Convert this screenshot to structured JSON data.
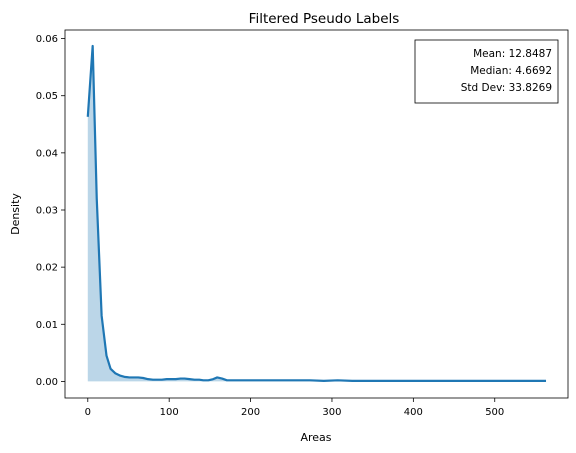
{
  "chart_data": {
    "type": "area",
    "title": "Filtered Pseudo Labels",
    "xlabel": "Areas",
    "ylabel": "Density",
    "xlim": [
      -28,
      590
    ],
    "ylim": [
      -0.0029,
      0.0615
    ],
    "x_ticks": [
      0,
      100,
      200,
      300,
      400,
      500
    ],
    "y_ticks": [
      0.0,
      0.01,
      0.02,
      0.03,
      0.04,
      0.05,
      0.06
    ],
    "y_tick_labels": [
      "0.00",
      "0.01",
      "0.02",
      "0.03",
      "0.04",
      "0.05",
      "0.06"
    ],
    "grid": false,
    "series": [
      {
        "color": "#1f77b4",
        "fill_color": "#1f77b4",
        "fill_opacity": 0.3,
        "x": [
          0,
          6,
          11,
          17,
          23,
          28,
          34,
          40,
          45,
          51,
          57,
          62,
          68,
          74,
          80,
          85,
          91,
          97,
          102,
          108,
          114,
          119,
          125,
          131,
          137,
          142,
          148,
          154,
          159,
          165,
          171,
          176,
          182,
          188,
          194,
          205,
          222,
          239,
          256,
          273,
          290,
          307,
          325,
          342,
          359,
          376,
          393,
          410,
          427,
          444,
          461,
          478,
          495,
          512,
          529,
          546,
          563
        ],
        "y": [
          0.0463,
          0.0587,
          0.032,
          0.0115,
          0.0045,
          0.0022,
          0.0014,
          0.001,
          0.0008,
          0.0007,
          0.0007,
          0.0007,
          0.0006,
          0.0004,
          0.0003,
          0.0003,
          0.0003,
          0.0004,
          0.0004,
          0.0004,
          0.0005,
          0.0005,
          0.0004,
          0.0003,
          0.0003,
          0.0002,
          0.0002,
          0.0004,
          0.0007,
          0.0005,
          0.0002,
          0.0002,
          0.0002,
          0.0002,
          0.0002,
          0.0002,
          0.0002,
          0.0002,
          0.0002,
          0.0002,
          0.0001,
          0.0002,
          0.0001,
          0.0001,
          0.0001,
          0.0001,
          0.0001,
          0.0001,
          0.0001,
          0.0001,
          0.0001,
          0.0001,
          0.0001,
          0.0001,
          0.0001,
          0.0001,
          0.0001
        ]
      }
    ],
    "annotation": {
      "placement": "top-right",
      "lines": [
        "Mean: 12.8487",
        "Median: 4.6692",
        "Std Dev: 33.8269"
      ]
    }
  }
}
